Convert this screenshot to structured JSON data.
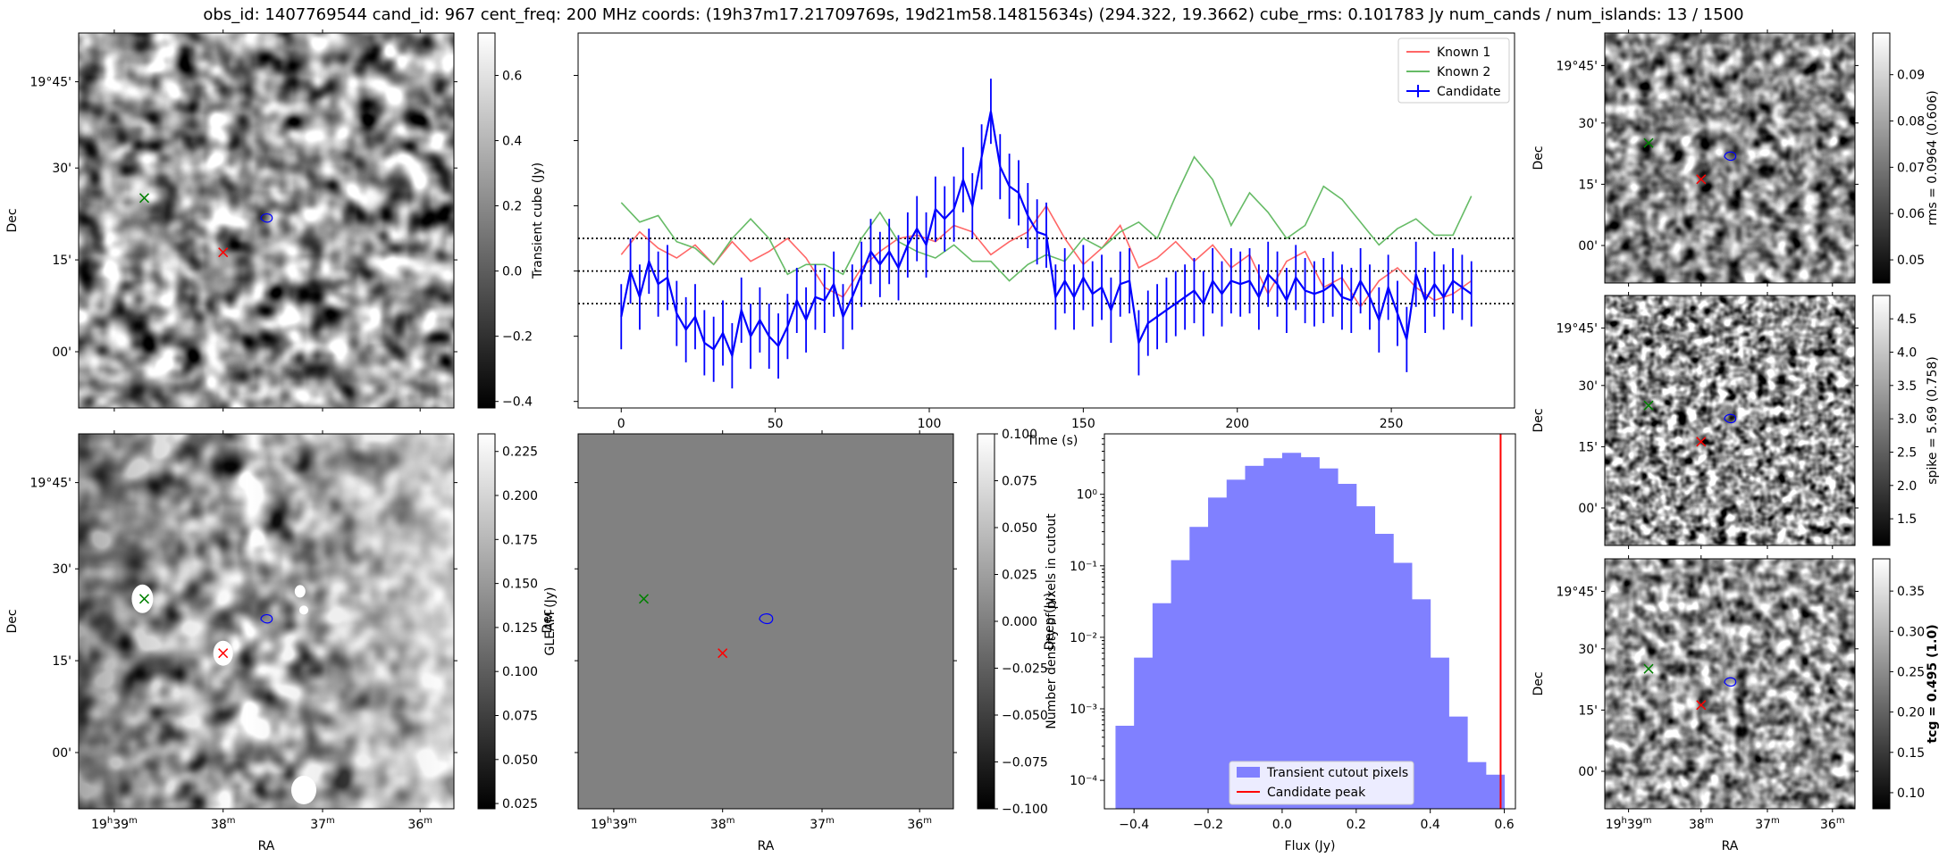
{
  "title": "obs_id: 1407769544 cand_id: 967 cent_freq: 200 MHz coords: (19h37m17.21709769s, 19d21m58.14815634s) (294.322, 19.3662) cube_rms: 0.101783 Jy num_cands / num_islands: 13 / 1500",
  "colors": {
    "candidate": "#0000ff",
    "known1": "#ff6666",
    "known2": "#66bb66",
    "hist": "#8080ff",
    "peak": "#ff0000",
    "green_marker": "#008000",
    "red_marker": "#ff0000"
  },
  "image_axes": {
    "dec_ticks": [
      "19°45'",
      "30'",
      "15'",
      "00'"
    ],
    "ra_ticks": [
      "19h39m",
      "38m",
      "37m",
      "36m"
    ],
    "xlabel": "RA",
    "ylabel": "Dec"
  },
  "colorbars": {
    "transient": {
      "label": "Transient cube (Jy)",
      "ticks": [
        "0.6",
        "0.4",
        "0.2",
        "0.0",
        "−0.2",
        "−0.4"
      ],
      "range": [
        -0.42,
        0.73
      ]
    },
    "gleam": {
      "label": "GLEAM (Jy)",
      "ticks": [
        "0.225",
        "0.200",
        "0.175",
        "0.150",
        "0.125",
        "0.100",
        "0.075",
        "0.050",
        "0.025"
      ],
      "range": [
        0.022,
        0.235
      ]
    },
    "deep": {
      "label": "Deep (Jy)",
      "ticks": [
        "0.100",
        "0.075",
        "0.050",
        "0.025",
        "0.000",
        "−0.025",
        "−0.050",
        "−0.075",
        "−0.100"
      ],
      "range": [
        -0.1,
        0.1
      ]
    },
    "rms": {
      "label": "rms = 0.0964 (0.606)",
      "ticks": [
        "0.09",
        "0.08",
        "0.07",
        "0.06",
        "0.05"
      ],
      "range": [
        0.045,
        0.099
      ]
    },
    "spike": {
      "label": "spike = 5.69 (0.758)",
      "ticks": [
        "4.5",
        "4.0",
        "3.5",
        "3.0",
        "2.5",
        "2.0",
        "1.5"
      ],
      "range": [
        1.1,
        4.85
      ]
    },
    "tcg": {
      "label": "tcg = 0.495 (1.0)",
      "ticks": [
        "0.35",
        "0.30",
        "0.25",
        "0.20",
        "0.15",
        "0.10"
      ],
      "range": [
        0.08,
        0.39
      ]
    }
  },
  "chart_data": [
    {
      "type": "line",
      "xlabel": "Time (s)",
      "ylabel": "",
      "xlim": [
        -14,
        290
      ],
      "ylim": [
        -0.42,
        0.73
      ],
      "xticks": [
        "0",
        "50",
        "100",
        "150",
        "200",
        "250"
      ],
      "legend": "top-right",
      "hlines": [
        0.1,
        0.0,
        -0.1
      ],
      "series": [
        {
          "name": "Known 1",
          "x": [
            0,
            6,
            12,
            18,
            24,
            30,
            36,
            42,
            48,
            54,
            60,
            66,
            72,
            78,
            84,
            90,
            96,
            102,
            108,
            114,
            120,
            126,
            132,
            138,
            144,
            150,
            156,
            162,
            168,
            174,
            180,
            186,
            192,
            198,
            204,
            210,
            216,
            222,
            228,
            234,
            240,
            246,
            252,
            258,
            264,
            270,
            276
          ],
          "y": [
            0.05,
            0.12,
            0.07,
            0.04,
            0.08,
            0.02,
            0.09,
            0.03,
            0.06,
            0.1,
            0.04,
            -0.05,
            -0.08,
            0.01,
            0.06,
            0.1,
            0.11,
            0.09,
            0.14,
            0.12,
            0.05,
            0.09,
            0.12,
            0.2,
            0.1,
            0.02,
            0.07,
            0.14,
            0.01,
            0.04,
            0.09,
            0.03,
            0.08,
            0.01,
            0.05,
            -0.07,
            0.03,
            0.06,
            -0.05,
            -0.02,
            -0.11,
            -0.03,
            0.01,
            -0.05,
            -0.09,
            -0.07,
            -0.03
          ]
        },
        {
          "name": "Known 2",
          "x": [
            0,
            6,
            12,
            18,
            24,
            30,
            36,
            42,
            48,
            54,
            60,
            66,
            72,
            78,
            84,
            90,
            96,
            102,
            108,
            114,
            120,
            126,
            132,
            138,
            144,
            150,
            156,
            162,
            168,
            174,
            180,
            186,
            192,
            198,
            204,
            210,
            216,
            222,
            228,
            234,
            240,
            246,
            252,
            258,
            264,
            270,
            276
          ],
          "y": [
            0.21,
            0.15,
            0.17,
            0.09,
            0.07,
            0.02,
            0.1,
            0.16,
            0.1,
            -0.01,
            0.02,
            0.02,
            -0.01,
            0.1,
            0.18,
            0.09,
            0.06,
            0.04,
            0.08,
            0.03,
            0.03,
            -0.03,
            0.02,
            0.05,
            0.03,
            0.1,
            0.07,
            0.12,
            0.15,
            0.1,
            0.23,
            0.35,
            0.28,
            0.14,
            0.24,
            0.18,
            0.1,
            0.14,
            0.26,
            0.22,
            0.15,
            0.08,
            0.13,
            0.16,
            0.11,
            0.11,
            0.23
          ]
        },
        {
          "name": "Candidate",
          "x": [
            0,
            3,
            6,
            9,
            12,
            15,
            18,
            21,
            24,
            27,
            30,
            33,
            36,
            39,
            42,
            45,
            48,
            51,
            54,
            57,
            60,
            63,
            66,
            69,
            72,
            75,
            78,
            81,
            84,
            87,
            90,
            93,
            96,
            99,
            102,
            105,
            108,
            111,
            114,
            117,
            120,
            123,
            126,
            129,
            132,
            135,
            138,
            141,
            144,
            147,
            150,
            153,
            156,
            159,
            162,
            165,
            168,
            171,
            174,
            177,
            180,
            183,
            186,
            189,
            192,
            195,
            198,
            201,
            204,
            207,
            210,
            213,
            216,
            219,
            222,
            225,
            228,
            231,
            234,
            237,
            240,
            243,
            246,
            249,
            252,
            255,
            258,
            261,
            264,
            267,
            270,
            273,
            276
          ],
          "y": [
            -0.14,
            0.0,
            -0.08,
            0.03,
            -0.04,
            -0.02,
            -0.13,
            -0.18,
            -0.14,
            -0.22,
            -0.24,
            -0.19,
            -0.26,
            -0.12,
            -0.2,
            -0.15,
            -0.2,
            -0.23,
            -0.17,
            -0.09,
            -0.15,
            -0.08,
            -0.09,
            -0.04,
            -0.14,
            -0.08,
            -0.01,
            0.06,
            0.02,
            0.06,
            0.01,
            0.08,
            0.13,
            0.08,
            0.19,
            0.16,
            0.19,
            0.28,
            0.2,
            0.35,
            0.49,
            0.32,
            0.26,
            0.24,
            0.17,
            0.12,
            0.11,
            -0.08,
            -0.03,
            -0.08,
            -0.02,
            -0.07,
            -0.05,
            -0.12,
            -0.04,
            -0.03,
            -0.22,
            -0.16,
            -0.14,
            -0.12,
            -0.1,
            -0.08,
            -0.06,
            -0.1,
            -0.03,
            -0.07,
            -0.03,
            -0.04,
            -0.03,
            -0.08,
            -0.01,
            -0.04,
            -0.09,
            -0.02,
            -0.06,
            -0.07,
            -0.06,
            -0.04,
            -0.08,
            -0.09,
            -0.03,
            -0.08,
            -0.15,
            -0.05,
            -0.13,
            -0.21,
            -0.01,
            -0.09,
            -0.04,
            -0.08,
            -0.03,
            -0.05,
            -0.07
          ],
          "yerr": 0.1
        }
      ]
    },
    {
      "type": "bar",
      "xlabel": "Flux (Jy)",
      "ylabel": "Number density of pixels in cutout",
      "yscale": "log",
      "ylim": [
        4e-05,
        7
      ],
      "xlim": [
        -0.48,
        0.63
      ],
      "xticks": [
        "−0.4",
        "−0.2",
        "0.0",
        "0.2",
        "0.4",
        "0.6"
      ],
      "yticks": [
        "10⁰",
        "10⁻¹",
        "10⁻²",
        "10⁻³",
        "10⁻⁴"
      ],
      "legend": "bottom-center",
      "bin_edges": [
        -0.45,
        -0.4,
        -0.35,
        -0.3,
        -0.25,
        -0.2,
        -0.15,
        -0.1,
        -0.05,
        0.0,
        0.05,
        0.1,
        0.15,
        0.2,
        0.25,
        0.3,
        0.35,
        0.4,
        0.45,
        0.5,
        0.55,
        0.6
      ],
      "values": [
        0.00058,
        0.0052,
        0.03,
        0.12,
        0.35,
        0.9,
        1.6,
        2.5,
        3.2,
        3.8,
        3.3,
        2.3,
        1.4,
        0.68,
        0.28,
        0.11,
        0.034,
        0.0052,
        0.00078,
        0.00018,
        0.00012
      ],
      "series": [
        {
          "name": "Transient cutout pixels"
        },
        {
          "name": "Candidate peak",
          "x": 0.59
        }
      ]
    }
  ]
}
